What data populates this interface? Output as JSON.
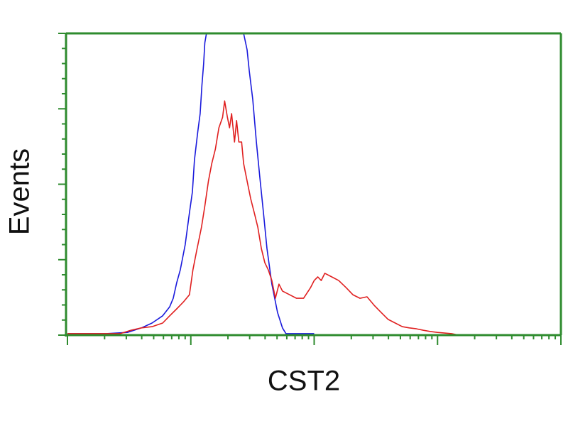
{
  "chart_data": {
    "type": "line",
    "title": "",
    "xlabel": "CST2",
    "ylabel": "Events",
    "x_scale": "log",
    "xlim": [
      1,
      10000
    ],
    "ylim": [
      0,
      100
    ],
    "y_major_divisions": 4,
    "grid": false,
    "legend": "none",
    "axis_color": "#2e8b2e",
    "series": [
      {
        "color": "#1a1adc",
        "x": [
          1,
          2.06,
          3.06,
          3.98,
          4.85,
          5.91,
          6.74,
          7.2,
          7.69,
          8.21,
          9.0,
          9.74,
          10.3,
          10.7,
          11.4,
          11.9,
          12.3,
          12.7,
          13.0,
          13.4,
          26.8,
          28.6,
          29.8,
          31.8,
          34.0,
          36.3,
          38.8,
          41.4,
          45.4,
          50.5,
          55.3,
          59.1,
          100
        ],
        "y": [
          0.5,
          0.5,
          0.9,
          2.4,
          4.0,
          6.4,
          9.4,
          12.2,
          17.4,
          21.6,
          29.9,
          40.5,
          47.5,
          58.1,
          67.5,
          73.4,
          82.8,
          89.9,
          96.9,
          100,
          100,
          94.6,
          87.5,
          78.1,
          64.0,
          52.2,
          40.5,
          28.7,
          16.9,
          7.5,
          2.4,
          0.5,
          0.5
        ]
      },
      {
        "color": "#e02020",
        "x": [
          1,
          2.68,
          3.27,
          3.98,
          4.85,
          5.91,
          6.74,
          7.69,
          8.77,
          9.74,
          10.4,
          11.1,
          12.2,
          13.0,
          13.9,
          14.8,
          15.8,
          16.9,
          18.1,
          18.8,
          19.8,
          20.6,
          21.4,
          22.6,
          23.5,
          24.5,
          25.8,
          26.8,
          28.6,
          30.6,
          32.7,
          34.9,
          37.3,
          39.8,
          42.5,
          45.4,
          48.5,
          51.8,
          55.3,
          63.1,
          71.9,
          82.1,
          93.6,
          100,
          107,
          114,
          122,
          139,
          158,
          181,
          206,
          235,
          268,
          306,
          349,
          398,
          454,
          518,
          590,
          674,
          769,
          877,
          1000,
          1301,
          1484
        ],
        "y": [
          0.5,
          0.5,
          1.6,
          2.4,
          2.8,
          4.0,
          6.4,
          8.7,
          11.1,
          13.4,
          21.6,
          27.5,
          35.8,
          42.8,
          51.1,
          56.9,
          61.6,
          68.7,
          72.2,
          77.6,
          72.2,
          68.7,
          73.4,
          64.0,
          71.1,
          64.0,
          64.0,
          56.9,
          51.1,
          45.2,
          40.5,
          35.8,
          28.7,
          24.0,
          21.6,
          18.1,
          12.2,
          16.9,
          14.6,
          13.4,
          12.2,
          12.2,
          15.8,
          18.1,
          19.3,
          18.1,
          20.5,
          19.3,
          18.1,
          15.8,
          13.4,
          12.2,
          12.7,
          9.9,
          7.5,
          5.2,
          4.0,
          2.8,
          2.4,
          2.1,
          1.6,
          1.2,
          0.9,
          0.5,
          0
        ]
      }
    ]
  }
}
